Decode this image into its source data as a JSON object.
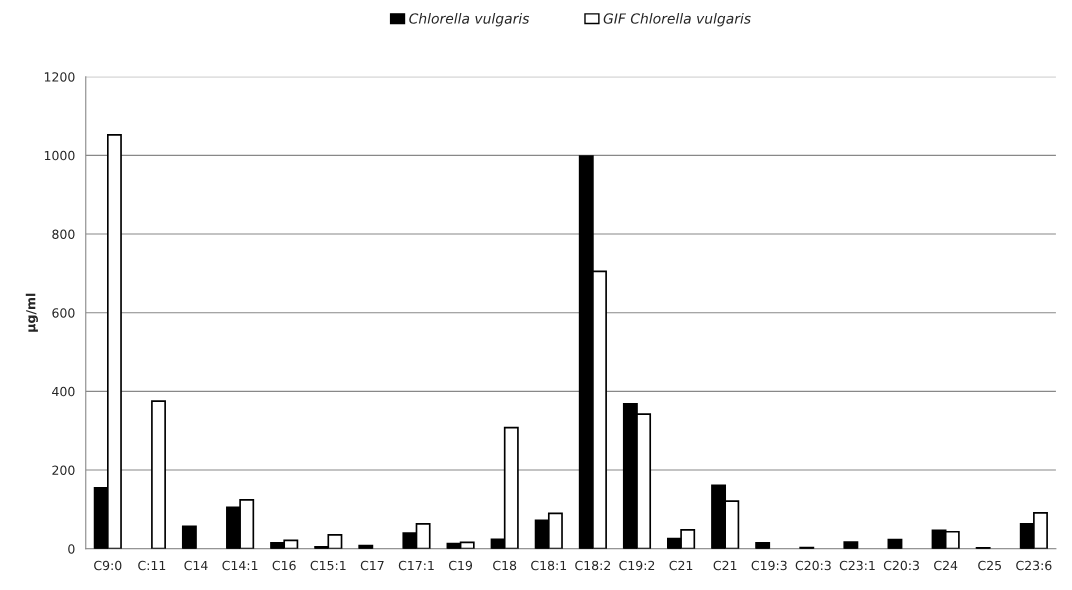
{
  "chart_data": {
    "type": "bar",
    "ylabel": "µg/ml",
    "categories": [
      "C9:0",
      "C:11",
      "C14",
      "C14:1",
      "C16",
      "C15:1",
      "C17",
      "C17:1",
      "C19",
      "C18",
      "C18:1",
      "C18:2",
      "C19:2",
      "C21",
      "C21",
      "C19:3",
      "C20:3",
      "C23:1",
      "C20:3",
      "C24",
      "C25",
      "C23:6"
    ],
    "series": [
      {
        "name": "Chlorella vulgaris",
        "color": "#000000",
        "values": [
          155,
          null,
          57,
          105,
          15,
          5,
          8,
          40,
          13,
          24,
          72,
          998,
          368,
          26,
          161,
          15,
          3,
          17,
          23,
          47,
          2,
          63
        ]
      },
      {
        "name": "GIF Chlorella vulgaris",
        "color": "#ffffff",
        "values": [
          1052,
          375,
          null,
          124,
          21,
          35,
          null,
          63,
          16,
          308,
          90,
          705,
          342,
          48,
          121,
          null,
          null,
          null,
          null,
          43,
          null,
          91
        ]
      }
    ],
    "ylim": [
      0,
      1200
    ],
    "yticks": [
      0,
      200,
      400,
      600,
      800,
      1000,
      1200
    ],
    "grid": "y",
    "legend": "top"
  }
}
